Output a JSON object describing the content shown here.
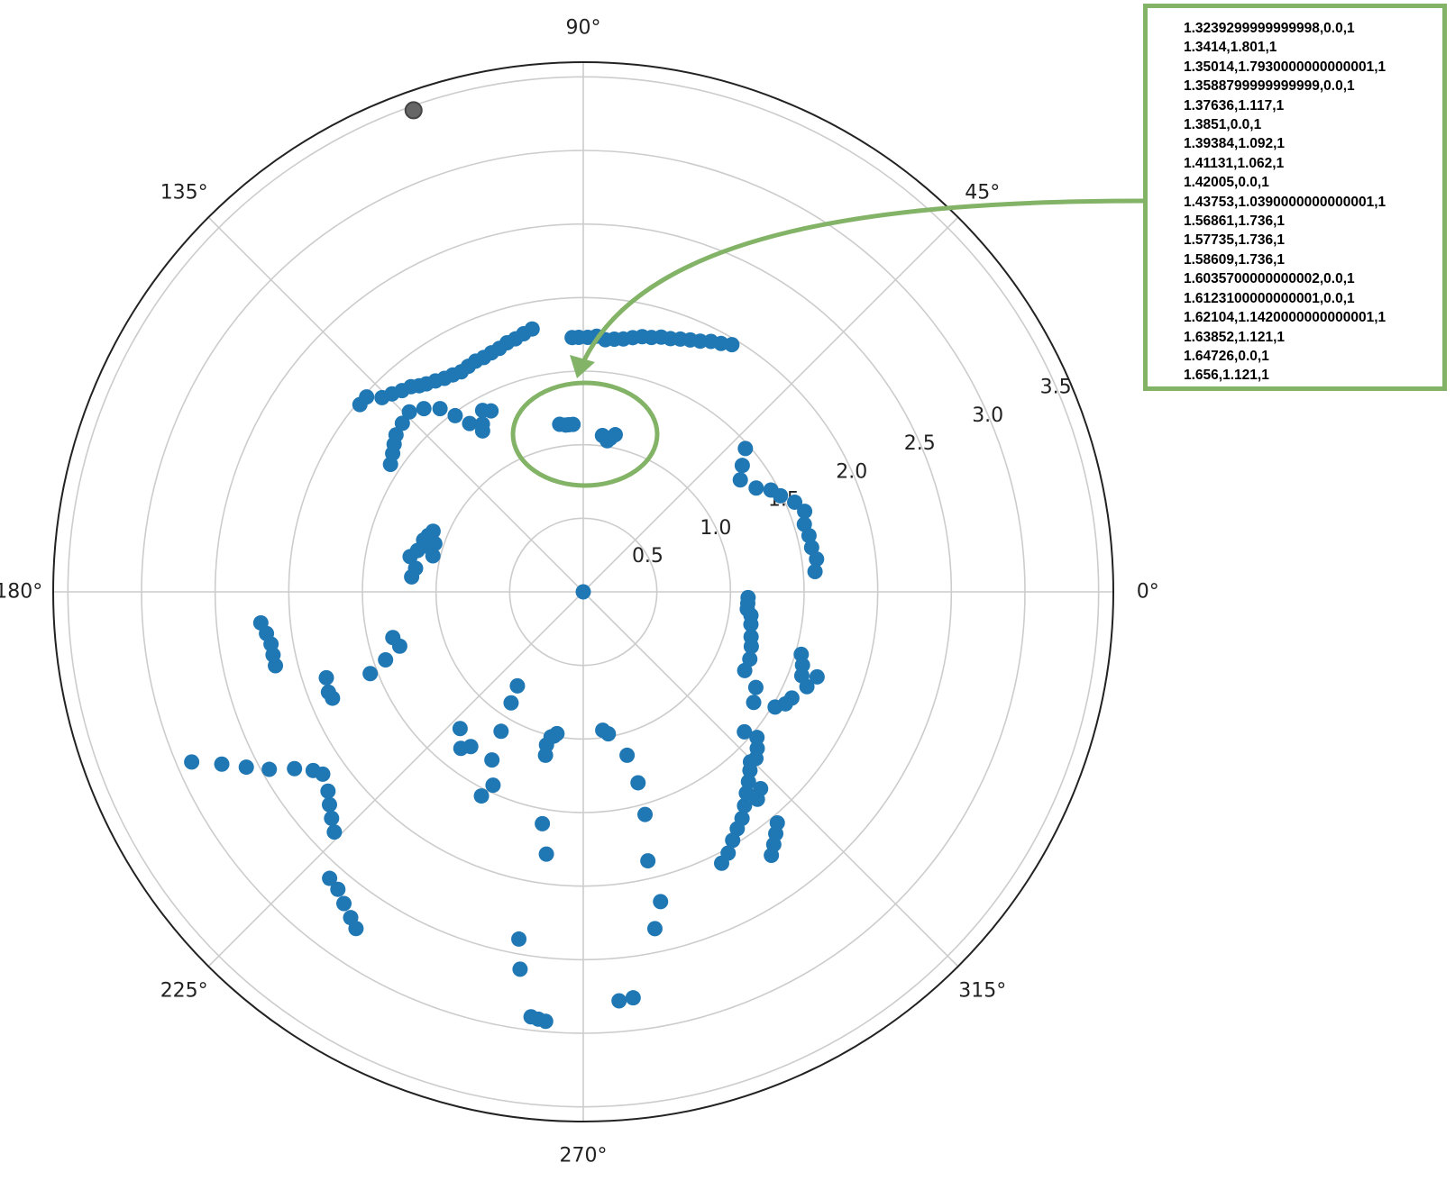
{
  "chart_data": {
    "type": "scatter",
    "projection": "polar",
    "title": "",
    "angle_ticks": [
      "0°",
      "45°",
      "90°",
      "135°",
      "180°",
      "225°",
      "270°",
      "315°"
    ],
    "radial_ticks": [
      "0.5",
      "1.0",
      "1.5",
      "2.0",
      "2.5",
      "3.0",
      "3.5"
    ],
    "rlim": [
      0,
      3.6
    ],
    "grid": true,
    "colors": {
      "points": "#1f77b4",
      "outlier_point": "#666666",
      "grid": "#cccccc",
      "frame": "#222222",
      "annotation": "#82b366"
    },
    "outlier": {
      "theta_deg": 109.4,
      "r": 3.47
    },
    "series": [
      {
        "points": [
          [
            0,
            0
          ]
        ]
      },
      {
        "points": [
          [
            140,
            1.98
          ],
          [
            138,
            1.98
          ],
          [
            136,
            1.9
          ],
          [
            134,
            1.87
          ],
          [
            132,
            1.84
          ],
          [
            130,
            1.82
          ],
          [
            128.5,
            1.79
          ],
          [
            127,
            1.77
          ],
          [
            125,
            1.75
          ],
          [
            123,
            1.73
          ],
          [
            121,
            1.72
          ],
          [
            119,
            1.71
          ],
          [
            117,
            1.72
          ],
          [
            115,
            1.73
          ],
          [
            113,
            1.73
          ],
          [
            111,
            1.74
          ],
          [
            109,
            1.75
          ],
          [
            107,
            1.77
          ],
          [
            105,
            1.78
          ],
          [
            103,
            1.8
          ],
          [
            101,
            1.82
          ]
        ]
      },
      {
        "points": [
          [
            92.5,
            1.73
          ],
          [
            91,
            1.73
          ],
          [
            89,
            1.73
          ],
          [
            87,
            1.74
          ],
          [
            85,
            1.72
          ],
          [
            83,
            1.73
          ],
          [
            81,
            1.74
          ],
          [
            79,
            1.76
          ],
          [
            77,
            1.78
          ],
          [
            75,
            1.79
          ],
          [
            73,
            1.81
          ],
          [
            71,
            1.82
          ],
          [
            69,
            1.84
          ],
          [
            67,
            1.86
          ],
          [
            65,
            1.88
          ],
          [
            63,
            1.91
          ],
          [
            61,
            1.93
          ],
          [
            59,
            1.96
          ]
        ]
      },
      {
        "points": [
          [
            98,
            1.15
          ],
          [
            96,
            1.14
          ],
          [
            95,
            1.14
          ],
          [
            93.5,
            1.14
          ],
          [
            83,
            1.07
          ],
          [
            81,
            1.04
          ],
          [
            80,
            1.06
          ],
          [
            78.5,
            1.09
          ]
        ]
      },
      {
        "points": [
          [
            146.5,
            1.57
          ],
          [
            144,
            1.6
          ],
          [
            142,
            1.63
          ],
          [
            140,
            1.66
          ],
          [
            137,
            1.68
          ],
          [
            134,
            1.7
          ],
          [
            131,
            1.65
          ],
          [
            128,
            1.58
          ],
          [
            126,
            1.48
          ],
          [
            124,
            1.38
          ],
          [
            122,
            1.29
          ],
          [
            121,
            1.33
          ],
          [
            119,
            1.41
          ],
          [
            117,
            1.38
          ]
        ]
      },
      {
        "points": [
          [
            168.5,
            1.2
          ],
          [
            166,
            1.16
          ],
          [
            164,
            1.13
          ],
          [
            162,
            1.14
          ],
          [
            160,
            1.12
          ],
          [
            158,
            1.1
          ],
          [
            162,
            1.06
          ],
          [
            166.5,
            1.05
          ],
          [
            172,
            1.15
          ],
          [
            175,
            1.17
          ]
        ]
      },
      {
        "points": [
          [
            41.5,
            1.47
          ],
          [
            38.5,
            1.38
          ],
          [
            35.5,
            1.31
          ],
          [
            31,
            1.37
          ],
          [
            28.5,
            1.45
          ],
          [
            26,
            1.49
          ],
          [
            23,
            1.56
          ],
          [
            20,
            1.6
          ],
          [
            17,
            1.57
          ],
          [
            14,
            1.58
          ],
          [
            11,
            1.58
          ],
          [
            8,
            1.6
          ],
          [
            5,
            1.58
          ]
        ]
      },
      {
        "points": [
          [
            358,
            1.12
          ],
          [
            356,
            1.12
          ],
          [
            354,
            1.12
          ],
          [
            352,
            1.15
          ],
          [
            349,
            1.16
          ],
          [
            345,
            1.18
          ],
          [
            342,
            1.2
          ],
          [
            338,
            1.22
          ],
          [
            344,
            1.54
          ],
          [
            341.5,
            1.57
          ],
          [
            339,
            1.59
          ]
        ]
      },
      {
        "points": [
          [
            193.5,
            2.15
          ],
          [
            191.5,
            2.15
          ],
          [
            189.5,
            2.15
          ],
          [
            187.5,
            2.17
          ],
          [
            185.5,
            2.2
          ],
          [
            198.5,
            1.84
          ],
          [
            201.5,
            1.86
          ],
          [
            203,
            1.85
          ],
          [
            201,
            1.55
          ],
          [
            199,
            1.42
          ],
          [
            196.5,
            1.3
          ],
          [
            193.5,
            1.33
          ]
        ]
      },
      {
        "points": [
          [
            224,
            2.35
          ],
          [
            222,
            2.3
          ],
          [
            220,
            2.25
          ],
          [
            218,
            2.2
          ],
          [
            215,
            2.16
          ],
          [
            213.5,
            2.2
          ],
          [
            211.5,
            2.3
          ],
          [
            209.5,
            2.45
          ],
          [
            207.5,
            2.58
          ],
          [
            205.5,
            2.72
          ],
          [
            203.5,
            2.9
          ],
          [
            236,
            2.76
          ],
          [
            234.5,
            2.72
          ],
          [
            232.5,
            2.67
          ],
          [
            230.5,
            2.62
          ],
          [
            228.5,
            2.6
          ]
        ]
      },
      {
        "points": [
          [
            235,
            0.78
          ],
          [
            237,
            0.9
          ],
          [
            239.5,
            1.1
          ],
          [
            241.5,
            1.3
          ],
          [
            243.5,
            1.55
          ],
          [
            245,
            1.45
          ],
          [
            228,
            1.25
          ],
          [
            232,
            1.35
          ],
          [
            234,
            1.3
          ],
          [
            258.5,
            1.0
          ],
          [
            260,
            1.6
          ],
          [
            262,
            1.8
          ],
          [
            259.5,
            2.4
          ],
          [
            260.5,
            2.6
          ],
          [
            263,
            2.91
          ],
          [
            264,
            2.92
          ],
          [
            265,
            2.93
          ]
        ]
      },
      {
        "points": [
          [
            257.5,
            1.01
          ],
          [
            259.5,
            0.98
          ],
          [
            256.5,
            1.07
          ],
          [
            257,
            1.14
          ],
          [
            278,
            0.95
          ],
          [
            280,
            0.98
          ],
          [
            285,
            1.15
          ],
          [
            286,
            1.35
          ],
          [
            285.5,
            1.57
          ],
          [
            283.5,
            1.88
          ],
          [
            284,
            2.17
          ],
          [
            277,
            2.78
          ],
          [
            275,
            2.79
          ],
          [
            282,
            2.34
          ]
        ]
      },
      {
        "points": [
          [
            314.5,
            1.62
          ],
          [
            313,
            1.66
          ],
          [
            311,
            1.71
          ],
          [
            309,
            1.76
          ],
          [
            307,
            1.82
          ],
          [
            305,
            1.88
          ],
          [
            303,
            1.92
          ],
          [
            301,
            1.97
          ],
          [
            299,
            2.03
          ],
          [
            297,
            2.07
          ],
          [
            320,
            1.54
          ],
          [
            318,
            1.59
          ],
          [
            316,
            1.63
          ],
          [
            310,
            2.05
          ],
          [
            308.5,
            2.1
          ],
          [
            307,
            2.15
          ],
          [
            305.5,
            2.2
          ]
        ]
      },
      {
        "points": [
          [
            340,
            1.69
          ],
          [
            337,
            1.65
          ],
          [
            333,
            1.59
          ],
          [
            331,
            1.57
          ],
          [
            329,
            1.52
          ],
          [
            334,
            1.22
          ],
          [
            331,
            1.34
          ],
          [
            327,
            1.38
          ],
          [
            319,
            1.45
          ],
          [
            310,
            1.84
          ],
          [
            312,
            1.8
          ]
        ]
      }
    ]
  },
  "annotation": {
    "readout_lines": [
      "1.3239299999999998,0.0,1",
      "1.3414,1.801,1",
      "1.35014,1.7930000000000001,1",
      "1.3588799999999999,0.0,1",
      "1.37636,1.117,1",
      "1.3851,0.0,1",
      "1.39384,1.092,1",
      "1.41131,1.062,1",
      "1.42005,0.0,1",
      "1.43753,1.0390000000000001,1",
      "1.56861,1.736,1",
      "1.57735,1.736,1",
      "1.58609,1.736,1",
      "1.6035700000000002,0.0,1",
      "1.6123100000000001,0.0,1",
      "1.62104,1.1420000000000001,1",
      "1.63852,1.121,1",
      "1.64726,0.0,1",
      "1.656,1.121,1"
    ]
  }
}
